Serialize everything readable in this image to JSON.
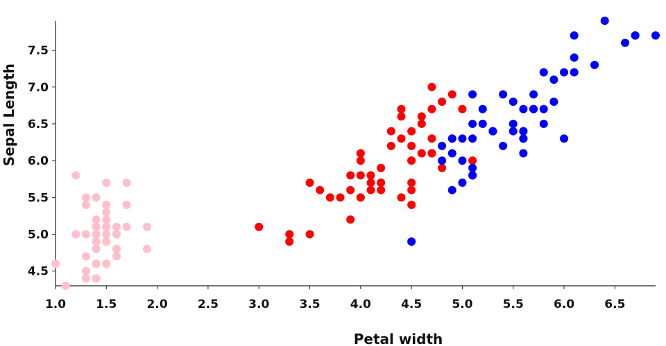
{
  "chart_data": {
    "type": "scatter",
    "title": "",
    "xlabel": "Petal width",
    "ylabel": "Sepal Length",
    "xlim": [
      1.0,
      6.9
    ],
    "ylim": [
      4.3,
      7.9
    ],
    "x_ticks": [
      "1.0",
      "1.5",
      "2.0",
      "2.5",
      "3.0",
      "3.5",
      "4.0",
      "4.5",
      "5.0",
      "5.5",
      "6.0",
      "6.5"
    ],
    "y_ticks": [
      "4.5",
      "5.0",
      "5.5",
      "6.0",
      "6.5",
      "7.0",
      "7.5"
    ],
    "grid": false,
    "legend": "none",
    "series": [
      {
        "color": "#ffc0cb",
        "points": [
          [
            1.4,
            5.1
          ],
          [
            1.4,
            4.9
          ],
          [
            1.3,
            4.7
          ],
          [
            1.5,
            4.6
          ],
          [
            1.4,
            5.0
          ],
          [
            1.7,
            5.4
          ],
          [
            1.4,
            4.6
          ],
          [
            1.5,
            5.0
          ],
          [
            1.4,
            4.4
          ],
          [
            1.5,
            4.9
          ],
          [
            1.5,
            5.4
          ],
          [
            1.6,
            4.8
          ],
          [
            1.4,
            4.8
          ],
          [
            1.1,
            4.3
          ],
          [
            1.2,
            5.8
          ],
          [
            1.5,
            5.7
          ],
          [
            1.3,
            5.4
          ],
          [
            1.4,
            5.1
          ],
          [
            1.7,
            5.7
          ],
          [
            1.5,
            5.1
          ],
          [
            1.7,
            5.4
          ],
          [
            1.5,
            5.1
          ],
          [
            1.0,
            4.6
          ],
          [
            1.7,
            5.1
          ],
          [
            1.9,
            4.8
          ],
          [
            1.6,
            5.0
          ],
          [
            1.6,
            5.0
          ],
          [
            1.5,
            5.2
          ],
          [
            1.4,
            5.2
          ],
          [
            1.6,
            4.7
          ],
          [
            1.6,
            4.8
          ],
          [
            1.5,
            5.4
          ],
          [
            1.5,
            5.2
          ],
          [
            1.4,
            5.5
          ],
          [
            1.5,
            4.9
          ],
          [
            1.2,
            5.0
          ],
          [
            1.3,
            5.5
          ],
          [
            1.4,
            4.9
          ],
          [
            1.3,
            4.4
          ],
          [
            1.5,
            5.1
          ],
          [
            1.3,
            5.0
          ],
          [
            1.3,
            4.5
          ],
          [
            1.3,
            4.4
          ],
          [
            1.6,
            5.0
          ],
          [
            1.9,
            5.1
          ],
          [
            1.4,
            4.8
          ],
          [
            1.6,
            5.1
          ],
          [
            1.4,
            4.6
          ],
          [
            1.5,
            5.3
          ],
          [
            1.4,
            5.0
          ]
        ]
      },
      {
        "color": "#ff0000",
        "points": [
          [
            4.7,
            7.0
          ],
          [
            4.5,
            6.4
          ],
          [
            4.9,
            6.9
          ],
          [
            4.0,
            5.5
          ],
          [
            4.6,
            6.5
          ],
          [
            4.5,
            5.7
          ],
          [
            4.7,
            6.3
          ],
          [
            3.3,
            4.9
          ],
          [
            4.6,
            6.6
          ],
          [
            3.9,
            5.2
          ],
          [
            3.5,
            5.0
          ],
          [
            4.2,
            5.9
          ],
          [
            4.0,
            6.0
          ],
          [
            4.7,
            6.1
          ],
          [
            3.6,
            5.6
          ],
          [
            4.4,
            6.7
          ],
          [
            4.5,
            5.6
          ],
          [
            4.1,
            5.8
          ],
          [
            4.5,
            6.2
          ],
          [
            3.9,
            5.6
          ],
          [
            4.8,
            5.9
          ],
          [
            4.0,
            6.1
          ],
          [
            4.9,
            6.3
          ],
          [
            4.7,
            6.1
          ],
          [
            4.3,
            6.4
          ],
          [
            4.4,
            6.6
          ],
          [
            4.8,
            6.8
          ],
          [
            5.0,
            6.7
          ],
          [
            4.5,
            6.0
          ],
          [
            3.5,
            5.7
          ],
          [
            3.8,
            5.5
          ],
          [
            3.7,
            5.5
          ],
          [
            3.9,
            5.8
          ],
          [
            5.1,
            6.0
          ],
          [
            4.5,
            5.4
          ],
          [
            4.5,
            6.0
          ],
          [
            4.7,
            6.7
          ],
          [
            4.4,
            6.3
          ],
          [
            4.1,
            5.6
          ],
          [
            4.0,
            5.5
          ],
          [
            4.4,
            5.5
          ],
          [
            4.6,
            6.1
          ],
          [
            4.0,
            5.8
          ],
          [
            3.3,
            5.0
          ],
          [
            4.2,
            5.6
          ],
          [
            4.2,
            5.7
          ],
          [
            4.2,
            5.7
          ],
          [
            4.3,
            6.2
          ],
          [
            3.0,
            5.1
          ],
          [
            4.1,
            5.7
          ]
        ]
      },
      {
        "color": "#0000ff",
        "points": [
          [
            6.0,
            6.3
          ],
          [
            5.1,
            5.8
          ],
          [
            5.9,
            7.1
          ],
          [
            5.6,
            6.3
          ],
          [
            5.8,
            6.5
          ],
          [
            6.6,
            7.6
          ],
          [
            4.5,
            4.9
          ],
          [
            6.3,
            7.3
          ],
          [
            5.8,
            6.7
          ],
          [
            6.1,
            7.2
          ],
          [
            5.1,
            6.5
          ],
          [
            5.3,
            6.4
          ],
          [
            5.5,
            6.8
          ],
          [
            5.0,
            5.7
          ],
          [
            5.1,
            5.8
          ],
          [
            5.3,
            6.4
          ],
          [
            5.5,
            6.5
          ],
          [
            6.7,
            7.7
          ],
          [
            6.9,
            7.7
          ],
          [
            5.0,
            6.0
          ],
          [
            5.7,
            6.9
          ],
          [
            4.9,
            5.6
          ],
          [
            6.7,
            7.7
          ],
          [
            4.9,
            6.3
          ],
          [
            5.7,
            6.7
          ],
          [
            6.0,
            7.2
          ],
          [
            4.8,
            6.2
          ],
          [
            4.9,
            6.1
          ],
          [
            5.6,
            6.4
          ],
          [
            5.8,
            7.2
          ],
          [
            6.1,
            7.4
          ],
          [
            6.4,
            7.9
          ],
          [
            5.6,
            6.4
          ],
          [
            5.1,
            6.3
          ],
          [
            5.6,
            6.1
          ],
          [
            6.1,
            7.7
          ],
          [
            5.6,
            6.3
          ],
          [
            5.5,
            6.4
          ],
          [
            4.8,
            6.0
          ],
          [
            5.4,
            6.9
          ],
          [
            5.6,
            6.7
          ],
          [
            5.1,
            6.9
          ],
          [
            5.1,
            5.8
          ],
          [
            5.9,
            6.8
          ],
          [
            5.7,
            6.7
          ],
          [
            5.2,
            6.7
          ],
          [
            5.0,
            6.3
          ],
          [
            5.2,
            6.5
          ],
          [
            5.4,
            6.2
          ],
          [
            5.1,
            5.9
          ]
        ]
      }
    ]
  }
}
